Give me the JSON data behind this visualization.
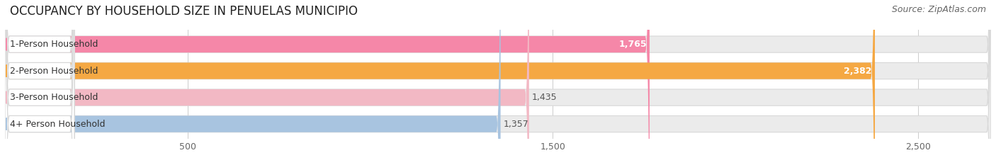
{
  "title": "OCCUPANCY BY HOUSEHOLD SIZE IN PENUELAS MUNICIPIO",
  "source": "Source: ZipAtlas.com",
  "categories": [
    "1-Person Household",
    "2-Person Household",
    "3-Person Household",
    "4+ Person Household"
  ],
  "values": [
    1765,
    2382,
    1435,
    1357
  ],
  "bar_colors": [
    "#f587a8",
    "#f5a843",
    "#f2b8c4",
    "#a8c4e0"
  ],
  "dot_colors": [
    "#f587a8",
    "#f5a843",
    "#f2b8c4",
    "#a8c4e0"
  ],
  "value_in_bar": [
    true,
    true,
    false,
    false
  ],
  "xlim_max": 2700,
  "xticks": [
    500,
    1500,
    2500
  ],
  "bg_color": "#ffffff",
  "bar_track_color": "#ebebeb",
  "bar_track_border": "#d8d8d8",
  "label_bg_color": "#ffffff",
  "title_fontsize": 12,
  "source_fontsize": 9,
  "bar_fontsize": 9,
  "label_fontsize": 9,
  "tick_fontsize": 9
}
